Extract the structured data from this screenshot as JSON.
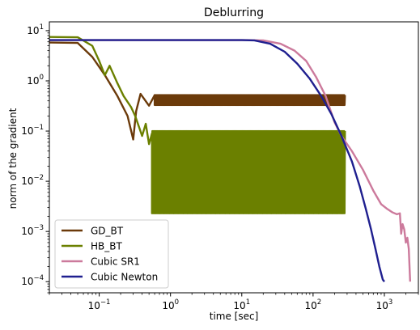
{
  "chart_data": {
    "type": "line",
    "title": "Deblurring",
    "xlabel": "time [sec]",
    "ylabel": "norm of the gradient",
    "xscale": "log",
    "yscale": "log",
    "xlim": [
      0.02,
      3000
    ],
    "ylim": [
      6e-05,
      15
    ],
    "xticks": [
      {
        "value": 0.1,
        "base": "10",
        "exp": "−1"
      },
      {
        "value": 1,
        "base": "10",
        "exp": "0"
      },
      {
        "value": 10,
        "base": "10",
        "exp": "1"
      },
      {
        "value": 100,
        "base": "10",
        "exp": "2"
      },
      {
        "value": 1000,
        "base": "10",
        "exp": "3"
      }
    ],
    "yticks": [
      {
        "value": 0.0001,
        "base": "10",
        "exp": "−4"
      },
      {
        "value": 0.001,
        "base": "10",
        "exp": "−3"
      },
      {
        "value": 0.01,
        "base": "10",
        "exp": "−2"
      },
      {
        "value": 0.1,
        "base": "10",
        "exp": "−1"
      },
      {
        "value": 1,
        "base": "10",
        "exp": "0"
      },
      {
        "value": 10,
        "base": "10",
        "exp": "1"
      }
    ],
    "grid": false,
    "legend": "bottom-left",
    "series": [
      {
        "name": "GD_BT",
        "color": "#6b3a0a",
        "points": [
          [
            0.02,
            5.8
          ],
          [
            0.05,
            5.7
          ],
          [
            0.08,
            3.0
          ],
          [
            0.12,
            1.3
          ],
          [
            0.18,
            0.5
          ],
          [
            0.25,
            0.2
          ],
          [
            0.3,
            0.068
          ],
          [
            0.33,
            0.25
          ],
          [
            0.38,
            0.55
          ],
          [
            0.5,
            0.32
          ],
          [
            0.6,
            0.52
          ]
        ],
        "oscillation": {
          "x_start": 0.6,
          "x_end": 280,
          "low": 0.33,
          "high": 0.52
        }
      },
      {
        "name": "HB_BT",
        "color": "#6b8000",
        "points": [
          [
            0.02,
            7.5
          ],
          [
            0.05,
            7.4
          ],
          [
            0.08,
            5.0
          ],
          [
            0.1,
            2.5
          ],
          [
            0.12,
            1.3
          ],
          [
            0.14,
            2.0
          ],
          [
            0.18,
            0.9
          ],
          [
            0.22,
            0.5
          ],
          [
            0.28,
            0.3
          ],
          [
            0.32,
            0.2
          ],
          [
            0.4,
            0.08
          ],
          [
            0.45,
            0.14
          ],
          [
            0.5,
            0.055
          ],
          [
            0.55,
            0.09
          ]
        ],
        "oscillation": {
          "x_start": 0.55,
          "x_end": 280,
          "low": 0.0023,
          "high": 0.1
        }
      },
      {
        "name": "Cubic SR1",
        "color": "#cc7a9c",
        "points": [
          [
            0.02,
            6.5
          ],
          [
            12,
            6.5
          ],
          [
            20,
            6.4
          ],
          [
            35,
            5.5
          ],
          [
            55,
            4.0
          ],
          [
            80,
            2.5
          ],
          [
            110,
            1.2
          ],
          [
            150,
            0.5
          ],
          [
            200,
            0.15
          ],
          [
            250,
            0.08
          ],
          [
            350,
            0.04
          ],
          [
            500,
            0.017
          ],
          [
            700,
            0.0065
          ],
          [
            900,
            0.0035
          ],
          [
            1100,
            0.0028
          ],
          [
            1300,
            0.0024
          ],
          [
            1500,
            0.0022
          ],
          [
            1650,
            0.0023
          ],
          [
            1720,
            0.0009
          ],
          [
            1800,
            0.0014
          ],
          [
            1900,
            0.0011
          ],
          [
            2000,
            0.0006
          ],
          [
            2100,
            0.00075
          ],
          [
            2200,
            0.00045
          ],
          [
            2300,
            0.0001
          ]
        ]
      },
      {
        "name": "Cubic Newton",
        "color": "#1f1f8f",
        "points": [
          [
            0.02,
            6.5
          ],
          [
            10,
            6.5
          ],
          [
            15,
            6.4
          ],
          [
            25,
            5.5
          ],
          [
            40,
            3.8
          ],
          [
            60,
            2.2
          ],
          [
            90,
            1.1
          ],
          [
            130,
            0.5
          ],
          [
            180,
            0.22
          ],
          [
            250,
            0.08
          ],
          [
            350,
            0.025
          ],
          [
            450,
            0.008
          ],
          [
            550,
            0.0028
          ],
          [
            650,
            0.0011
          ],
          [
            750,
            0.00045
          ],
          [
            850,
            0.0002
          ],
          [
            950,
            0.00011
          ],
          [
            1000,
            0.0001
          ]
        ]
      }
    ]
  }
}
